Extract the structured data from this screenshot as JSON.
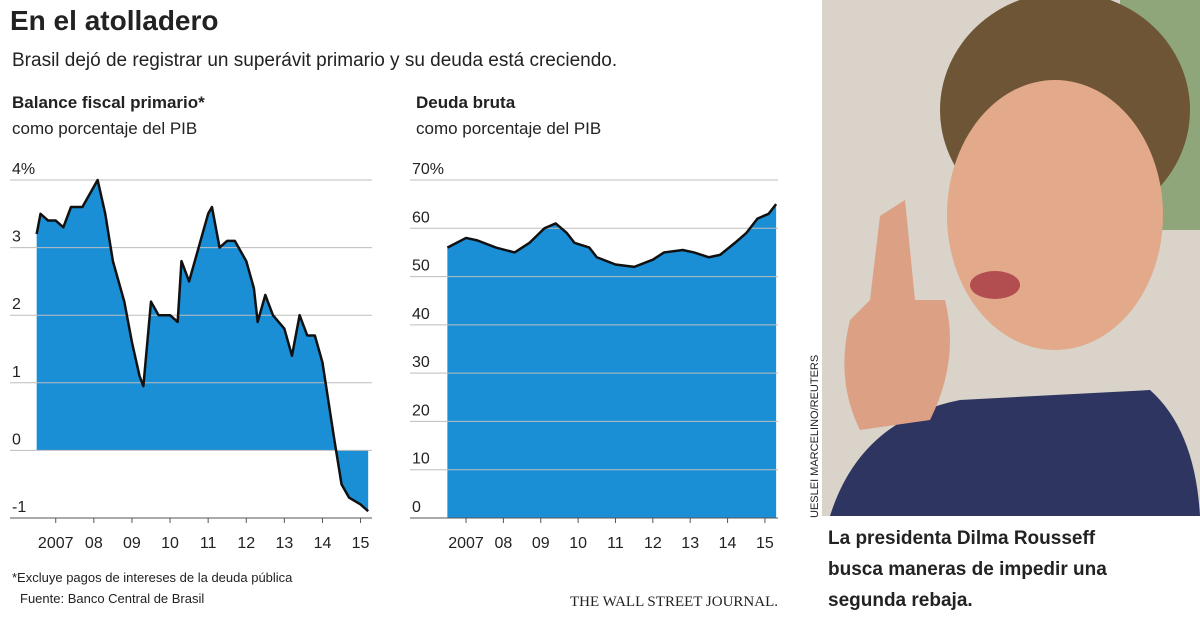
{
  "title": "En el atolladero",
  "subtitle": "Brasil dejó de registrar un superávit primario y su deuda está creciendo.",
  "chart_data": [
    {
      "type": "area",
      "title": "Balance fiscal primario*",
      "subtitle": "como porcentaje del PIB",
      "color": "#1b8fd6",
      "line_color": "#111111",
      "grid": true,
      "x": [
        2007.0,
        2007.1,
        2007.3,
        2007.5,
        2007.7,
        2007.9,
        2008.2,
        2008.5,
        2008.6,
        2008.8,
        2009.0,
        2009.3,
        2009.5,
        2009.7,
        2009.8,
        2010.0,
        2010.2,
        2010.5,
        2010.7,
        2010.8,
        2011.0,
        2011.3,
        2011.5,
        2011.6,
        2011.8,
        2012.0,
        2012.2,
        2012.5,
        2012.7,
        2012.8,
        2013.0,
        2013.2,
        2013.5,
        2013.7,
        2013.9,
        2014.1,
        2014.3,
        2014.5,
        2014.8,
        2015.0,
        2015.2,
        2015.5,
        2015.7
      ],
      "values": [
        3.2,
        3.5,
        3.4,
        3.4,
        3.3,
        3.6,
        3.6,
        3.9,
        4.0,
        3.5,
        2.8,
        2.2,
        1.6,
        1.1,
        0.95,
        2.2,
        2.0,
        2.0,
        1.9,
        2.8,
        2.5,
        3.1,
        3.5,
        3.6,
        3.0,
        3.1,
        3.1,
        2.8,
        2.4,
        1.9,
        2.3,
        2.0,
        1.8,
        1.4,
        2.0,
        1.7,
        1.7,
        1.3,
        0.2,
        -0.5,
        -0.7,
        -0.8,
        -0.9
      ],
      "xlim": [
        2006.3,
        2015.8
      ],
      "xticks": [
        {
          "value": 2007.5,
          "label": "2007"
        },
        {
          "value": 2008.5,
          "label": "08"
        },
        {
          "value": 2009.5,
          "label": "09"
        },
        {
          "value": 2010.5,
          "label": "10"
        },
        {
          "value": 2011.5,
          "label": "11"
        },
        {
          "value": 2012.5,
          "label": "12"
        },
        {
          "value": 2013.5,
          "label": "13"
        },
        {
          "value": 2014.5,
          "label": "14"
        },
        {
          "value": 2015.5,
          "label": "15"
        }
      ],
      "ylim": [
        -1,
        4
      ],
      "yticks": [
        {
          "value": 4,
          "label": "4%"
        },
        3,
        2,
        1,
        0,
        -1
      ]
    },
    {
      "type": "area",
      "title": "Deuda bruta",
      "subtitle": "como porcentaje del PIB",
      "color": "#1b8fd6",
      "line_color": "#111111",
      "grid": true,
      "x": [
        2007.0,
        2007.5,
        2007.8,
        2008.3,
        2008.8,
        2009.2,
        2009.6,
        2009.9,
        2010.2,
        2010.4,
        2010.8,
        2011.0,
        2011.5,
        2012.0,
        2012.5,
        2012.8,
        2013.3,
        2013.6,
        2014.0,
        2014.3,
        2014.7,
        2015.0,
        2015.3,
        2015.6,
        2015.8
      ],
      "values": [
        56,
        58,
        57.5,
        56,
        55,
        57,
        60,
        61,
        59,
        57,
        56,
        54,
        52.5,
        52,
        53.5,
        55,
        55.5,
        55,
        54,
        54.5,
        57,
        59,
        62,
        63,
        65
      ],
      "xlim": [
        2006.0,
        2015.85
      ],
      "xticks": [
        {
          "value": 2007.5,
          "label": "2007"
        },
        {
          "value": 2008.5,
          "label": "08"
        },
        {
          "value": 2009.5,
          "label": "09"
        },
        {
          "value": 2010.5,
          "label": "10"
        },
        {
          "value": 2011.5,
          "label": "11"
        },
        {
          "value": 2012.5,
          "label": "12"
        },
        {
          "value": 2013.5,
          "label": "13"
        },
        {
          "value": 2014.5,
          "label": "14"
        },
        {
          "value": 2015.5,
          "label": "15"
        }
      ],
      "ylim": [
        0,
        70
      ],
      "yticks": [
        {
          "value": 70,
          "label": "70%"
        },
        60,
        50,
        40,
        30,
        20,
        10,
        0
      ]
    }
  ],
  "footnote": "*Excluye pagos de intereses de la deuda pública",
  "source": "Fuente: Banco Central de Brasil",
  "publisher": "THE WALL STREET JOURNAL.",
  "photo_credit": "UESLEI MARCELINO/REUTERS",
  "caption": [
    "La presidenta Dilma Rousseff",
    "busca maneras de impedir una",
    "segunda rebaja."
  ]
}
